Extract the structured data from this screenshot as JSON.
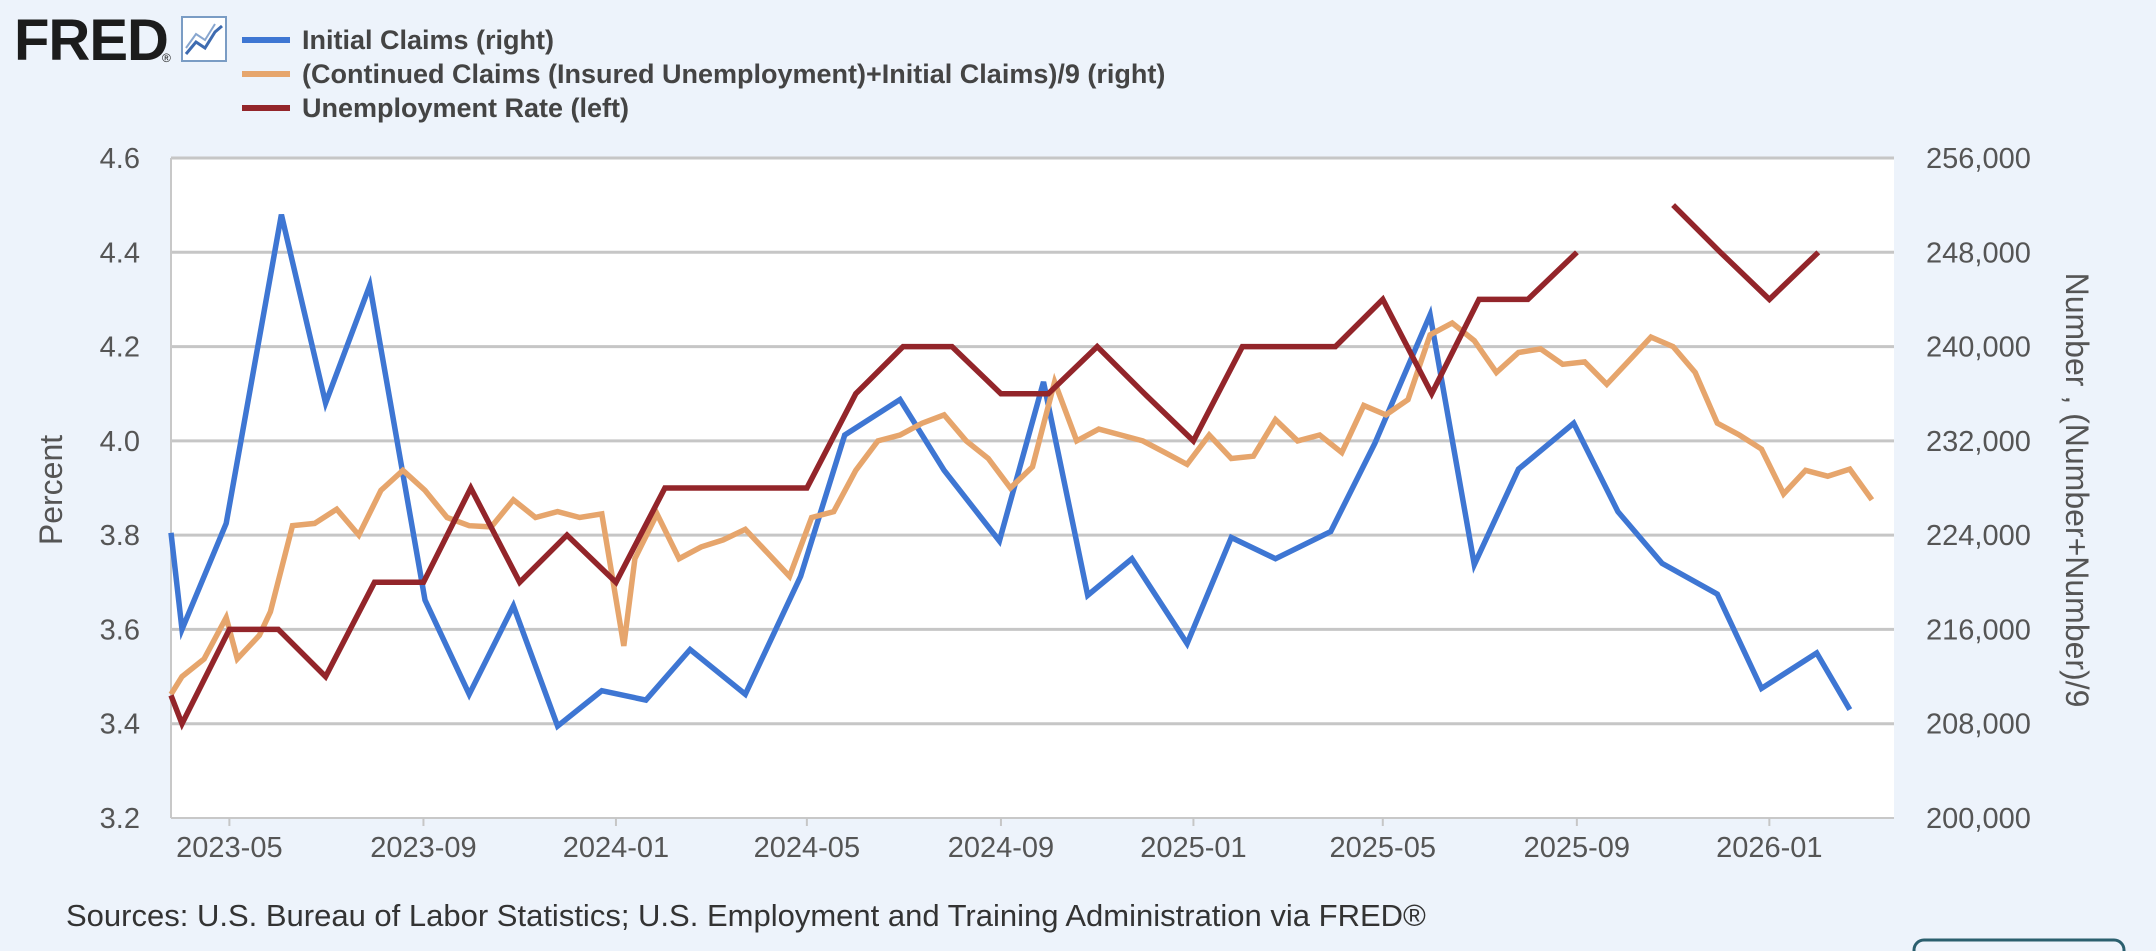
{
  "header": {
    "logo_text": "FRED",
    "logo_mark": "®",
    "logo_icon": "chart-line-icon"
  },
  "footer": {
    "sources": "Sources: U.S. Bureau of Labor Statistics; U.S. Employment and Training Administration via FRED®"
  },
  "chart_data": {
    "type": "line",
    "legend_position": "top-left",
    "grid": true,
    "xlabel": "",
    "x_ticks": [
      "2023-05",
      "2023-09",
      "2024-01",
      "2024-05",
      "2024-09",
      "2025-01",
      "2025-05",
      "2025-09",
      "2026-01"
    ],
    "x_range": [
      "2023-03-25",
      "2026-03-21"
    ],
    "left_axis": {
      "label": "Percent",
      "range": [
        3.2,
        4.6
      ],
      "ticks": [
        "3.2",
        "3.4",
        "3.6",
        "3.8",
        "4.0",
        "4.2",
        "4.4",
        "4.6"
      ]
    },
    "right_axis": {
      "label": "Number , (Number+Number)/9",
      "range": [
        200000,
        256000
      ],
      "ticks": [
        "200,000",
        "208,000",
        "216,000",
        "224,000",
        "232,000",
        "240,000",
        "248,000",
        "256,000"
      ]
    },
    "series": [
      {
        "name": "Initial Claims (right)",
        "axis": "right",
        "color": "#3e76d3",
        "points": [
          [
            "2023-03-25",
            224200
          ],
          [
            "2023-04-01",
            216000
          ],
          [
            "2023-04-29",
            225000
          ],
          [
            "2023-06-03",
            251200
          ],
          [
            "2023-07-01",
            235200
          ],
          [
            "2023-07-29",
            245200
          ],
          [
            "2023-09-02",
            218500
          ],
          [
            "2023-09-30",
            210500
          ],
          [
            "2023-10-28",
            218000
          ],
          [
            "2023-11-25",
            207800
          ],
          [
            "2023-12-23",
            210800
          ],
          [
            "2024-01-20",
            210000
          ],
          [
            "2024-02-17",
            214300
          ],
          [
            "2024-03-23",
            210500
          ],
          [
            "2024-04-27",
            220500
          ],
          [
            "2024-05-25",
            232500
          ],
          [
            "2024-06-29",
            235500
          ],
          [
            "2024-07-27",
            229500
          ],
          [
            "2024-08-31",
            223500
          ],
          [
            "2024-09-28",
            237000
          ],
          [
            "2024-10-26",
            218900
          ],
          [
            "2024-11-23",
            222000
          ],
          [
            "2024-12-28",
            214800
          ],
          [
            "2025-01-25",
            223800
          ],
          [
            "2025-02-22",
            222000
          ],
          [
            "2025-03-29",
            224300
          ],
          [
            "2025-04-26",
            231800
          ],
          [
            "2025-05-31",
            242700
          ],
          [
            "2025-06-28",
            221500
          ],
          [
            "2025-07-26",
            229600
          ],
          [
            "2025-08-30",
            233500
          ],
          [
            "2025-09-27",
            226000
          ],
          [
            "2025-10-25",
            221600
          ],
          [
            "2025-11-29",
            219000
          ],
          [
            "2025-12-27",
            211000
          ],
          [
            "2026-01-31",
            214000
          ],
          [
            "2026-02-21",
            209200
          ]
        ]
      },
      {
        "name": "(Continued Claims (Insured Unemployment)+Initial Claims)/9 (right)",
        "axis": "right",
        "color": "#e6a56c",
        "points": [
          [
            "2023-03-25",
            210500
          ],
          [
            "2023-04-01",
            212000
          ],
          [
            "2023-04-15",
            213500
          ],
          [
            "2023-04-29",
            217000
          ],
          [
            "2023-05-06",
            213500
          ],
          [
            "2023-05-20",
            215500
          ],
          [
            "2023-05-27",
            217500
          ],
          [
            "2023-06-10",
            224800
          ],
          [
            "2023-06-24",
            225000
          ],
          [
            "2023-07-08",
            226200
          ],
          [
            "2023-07-22",
            224000
          ],
          [
            "2023-08-05",
            227800
          ],
          [
            "2023-08-19",
            229500
          ],
          [
            "2023-09-02",
            227800
          ],
          [
            "2023-09-16",
            225500
          ],
          [
            "2023-09-30",
            224800
          ],
          [
            "2023-10-14",
            224700
          ],
          [
            "2023-10-28",
            227000
          ],
          [
            "2023-11-11",
            225500
          ],
          [
            "2023-11-25",
            226000
          ],
          [
            "2023-12-09",
            225500
          ],
          [
            "2023-12-23",
            225800
          ],
          [
            "2024-01-06",
            214600
          ],
          [
            "2024-01-13",
            222000
          ],
          [
            "2024-01-27",
            225800
          ],
          [
            "2024-02-10",
            222000
          ],
          [
            "2024-02-24",
            223000
          ],
          [
            "2024-03-09",
            223600
          ],
          [
            "2024-03-23",
            224500
          ],
          [
            "2024-04-06",
            222500
          ],
          [
            "2024-04-20",
            220500
          ],
          [
            "2024-05-04",
            225500
          ],
          [
            "2024-05-18",
            226000
          ],
          [
            "2024-06-01",
            229500
          ],
          [
            "2024-06-15",
            232000
          ],
          [
            "2024-06-29",
            232500
          ],
          [
            "2024-07-13",
            233500
          ],
          [
            "2024-07-27",
            234200
          ],
          [
            "2024-08-10",
            232000
          ],
          [
            "2024-08-24",
            230500
          ],
          [
            "2024-09-07",
            228000
          ],
          [
            "2024-09-21",
            229800
          ],
          [
            "2024-10-05",
            237000
          ],
          [
            "2024-10-19",
            232000
          ],
          [
            "2024-11-02",
            233000
          ],
          [
            "2024-11-16",
            232500
          ],
          [
            "2024-11-30",
            232000
          ],
          [
            "2024-12-14",
            231000
          ],
          [
            "2024-12-28",
            230000
          ],
          [
            "2025-01-11",
            232500
          ],
          [
            "2025-01-25",
            230500
          ],
          [
            "2025-02-08",
            230700
          ],
          [
            "2025-02-22",
            233800
          ],
          [
            "2025-03-08",
            232000
          ],
          [
            "2025-03-22",
            232500
          ],
          [
            "2025-04-05",
            231000
          ],
          [
            "2025-04-19",
            235000
          ],
          [
            "2025-05-03",
            234200
          ],
          [
            "2025-05-17",
            235500
          ],
          [
            "2025-05-31",
            241000
          ],
          [
            "2025-06-14",
            242000
          ],
          [
            "2025-06-28",
            240500
          ],
          [
            "2025-07-12",
            237800
          ],
          [
            "2025-07-26",
            239500
          ],
          [
            "2025-08-09",
            239800
          ],
          [
            "2025-08-23",
            238500
          ],
          [
            "2025-09-06",
            238700
          ],
          [
            "2025-09-20",
            236800
          ],
          [
            "2025-10-04",
            238800
          ],
          [
            "2025-10-18",
            240800
          ],
          [
            "2025-11-01",
            240000
          ],
          [
            "2025-11-15",
            237800
          ],
          [
            "2025-11-29",
            233500
          ],
          [
            "2025-12-13",
            232500
          ],
          [
            "2025-12-27",
            231300
          ],
          [
            "2026-01-10",
            227500
          ],
          [
            "2026-01-24",
            229500
          ],
          [
            "2026-02-07",
            229000
          ],
          [
            "2026-02-21",
            229600
          ],
          [
            "2026-03-07",
            227000
          ]
        ]
      },
      {
        "name": "Unemployment Rate (left)",
        "axis": "left",
        "color": "#93252a",
        "points": [
          [
            "2023-03-25",
            3.46
          ],
          [
            "2023-04-01",
            3.4
          ],
          [
            "2023-05-01",
            3.6
          ],
          [
            "2023-06-01",
            3.6
          ],
          [
            "2023-07-01",
            3.5
          ],
          [
            "2023-08-01",
            3.7
          ],
          [
            "2023-09-01",
            3.7
          ],
          [
            "2023-10-01",
            3.9
          ],
          [
            "2023-11-01",
            3.7
          ],
          [
            "2023-12-01",
            3.8
          ],
          [
            "2024-01-01",
            3.7
          ],
          [
            "2024-02-01",
            3.9
          ],
          [
            "2024-03-01",
            3.9
          ],
          [
            "2024-04-01",
            3.9
          ],
          [
            "2024-05-01",
            3.9
          ],
          [
            "2024-06-01",
            4.1
          ],
          [
            "2024-07-01",
            4.2
          ],
          [
            "2024-08-01",
            4.2
          ],
          [
            "2024-09-01",
            4.1
          ],
          [
            "2024-10-01",
            4.1
          ],
          [
            "2024-11-01",
            4.2
          ],
          [
            "2024-12-01",
            4.1
          ],
          [
            "2025-01-01",
            4.0
          ],
          [
            "2025-02-01",
            4.2
          ],
          [
            "2025-03-01",
            4.2
          ],
          [
            "2025-04-01",
            4.2
          ],
          [
            "2025-05-01",
            4.3
          ],
          [
            "2025-06-01",
            4.1
          ],
          [
            "2025-07-01",
            4.3
          ],
          [
            "2025-08-01",
            4.3
          ],
          [
            "2025-09-01",
            4.4
          ],
          [
            "2025-10-01",
            null
          ],
          [
            "2025-11-01",
            4.5
          ],
          [
            "2025-12-01",
            4.4
          ],
          [
            "2026-01-01",
            4.3
          ],
          [
            "2026-02-01",
            4.4
          ]
        ]
      }
    ]
  }
}
